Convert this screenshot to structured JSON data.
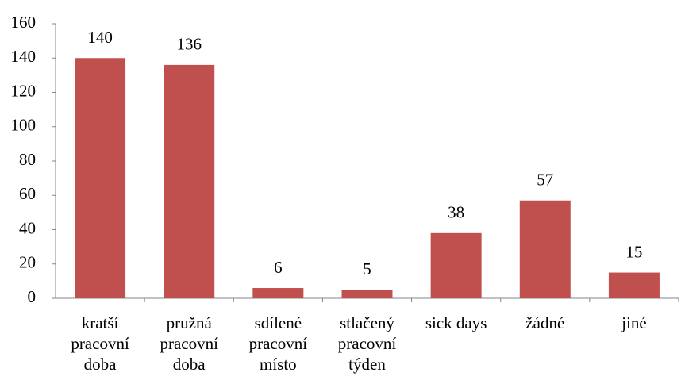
{
  "chart_data": {
    "type": "bar",
    "categories": [
      "kratší pracovní doba",
      "pružná pracovní doba",
      "sdílené pracovní místo",
      "stlačený pracovní týden",
      "sick days",
      "žádné",
      "jiné"
    ],
    "values": [
      140,
      136,
      6,
      5,
      38,
      57,
      15
    ],
    "color": "#c0504d",
    "ylim": [
      0,
      160
    ],
    "yticks": [
      0,
      20,
      40,
      60,
      80,
      100,
      120,
      140,
      160
    ],
    "grid": false,
    "data_labels": true
  }
}
